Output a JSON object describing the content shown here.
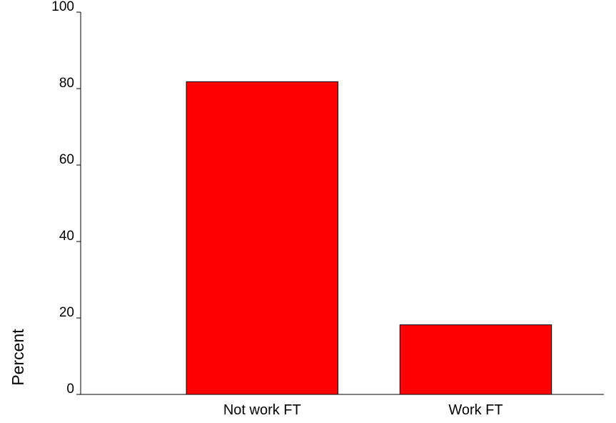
{
  "chart_data": {
    "type": "bar",
    "categories": [
      "Not work FT",
      "Work FT"
    ],
    "values": [
      81.8,
      18.2
    ],
    "ylabel": "Percent",
    "ylim": [
      0,
      100
    ],
    "yticks": [
      0,
      20,
      40,
      60,
      80,
      100
    ],
    "bar_color": "#ff0000",
    "grid": false,
    "legend": "none"
  }
}
